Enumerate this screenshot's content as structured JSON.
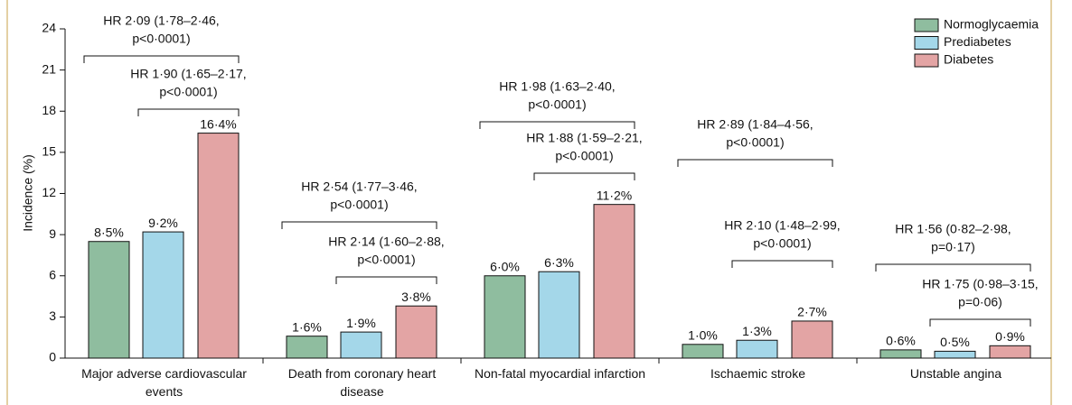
{
  "chart_data": {
    "type": "bar",
    "y_label": "Incidence (%)",
    "categories": [
      "Major adverse cardiovascular events",
      "Death from coronary heart disease",
      "Non-fatal myocardial infarction",
      "Ischaemic stroke",
      "Unstable angina"
    ],
    "series": [
      {
        "name": "Normoglycaemia",
        "color": "#8fbd9f",
        "values": [
          8.5,
          1.6,
          6.0,
          1.0,
          0.6
        ],
        "value_labels": [
          "8·5%",
          "1·6%",
          "6·0%",
          "1·0%",
          "0·6%"
        ]
      },
      {
        "name": "Prediabetes",
        "color": "#a4d7e9",
        "values": [
          9.2,
          1.9,
          6.3,
          1.3,
          0.5
        ],
        "value_labels": [
          "9·2%",
          "1·9%",
          "6·3%",
          "1·3%",
          "0·5%"
        ]
      },
      {
        "name": "Diabetes",
        "color": "#e3a4a4",
        "values": [
          16.4,
          3.8,
          11.2,
          2.7,
          0.9
        ],
        "value_labels": [
          "16·4%",
          "3·8%",
          "11·2%",
          "2·7%",
          "0·9%"
        ]
      }
    ],
    "annotations": [
      [
        [
          "HR 2·09 (1·78–2·46,",
          "p<0·0001)"
        ],
        [
          "HR 1·90 (1·65–2·17,",
          "p<0·0001)"
        ]
      ],
      [
        [
          "HR 2·54 (1·77–3·46,",
          "p<0·0001)"
        ],
        [
          "HR 2·14 (1·60–2·88,",
          "p<0·0001)"
        ]
      ],
      [
        [
          "HR 1·98 (1·63–2·40,",
          "p<0·0001)"
        ],
        [
          "HR 1·88 (1·59–2·21,",
          "p<0·0001)"
        ]
      ],
      [
        [
          "HR 2·89 (1·84–4·56,",
          "p<0·0001)"
        ],
        [
          "HR 2·10 (1·48–2·99,",
          "p<0·0001)"
        ]
      ],
      [
        [
          "HR 1·56 (0·82–2·98,",
          "p=0·17)"
        ],
        [
          "HR 1·75 (0·98–3·15,",
          "p=0·06)"
        ]
      ]
    ],
    "ylim": [
      0,
      24
    ],
    "yticks": [
      0,
      3,
      6,
      9,
      12,
      15,
      18,
      21,
      24
    ],
    "legend": "top-right"
  }
}
